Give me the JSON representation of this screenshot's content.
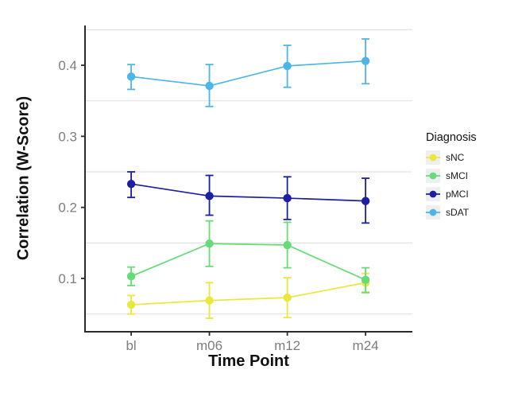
{
  "legend": {
    "title": "Diagnosis"
  },
  "style": {
    "grid_color": "#e2e2e2",
    "axis_color": "#2b2b2b",
    "tick_label_color": "#7e7e7e",
    "legend_key_bg": "#efefef"
  },
  "chart_data": {
    "type": "line",
    "title": "",
    "xlabel": "Time Point",
    "ylabel": "Correlation (W-Score)",
    "x_categories": [
      "bl",
      "m06",
      "m12",
      "m24"
    ],
    "yticks": [
      0.1,
      0.2,
      0.3,
      0.4
    ],
    "ytick_labels": [
      "0.1",
      "0.2",
      "0.3",
      "0.4"
    ],
    "gridlines": [
      0.05,
      0.15,
      0.25,
      0.35,
      0.45
    ],
    "ylim": [
      0.025,
      0.456
    ],
    "grid": "horizontal-minor-only",
    "legend_position": "right",
    "error_bars": true,
    "series": [
      {
        "name": "sNC",
        "color": "#e9e83c",
        "values": [
          0.063,
          0.069,
          0.073,
          0.094
        ],
        "err_low": [
          0.05,
          0.044,
          0.045,
          0.081
        ],
        "err_high": [
          0.076,
          0.094,
          0.101,
          0.107
        ]
      },
      {
        "name": "sMCI",
        "color": "#66dc78",
        "values": [
          0.103,
          0.149,
          0.147,
          0.098
        ],
        "err_low": [
          0.09,
          0.117,
          0.115,
          0.08
        ],
        "err_high": [
          0.116,
          0.181,
          0.179,
          0.115
        ]
      },
      {
        "name": "pMCI",
        "color": "#1b1fa0",
        "values": [
          0.233,
          0.216,
          0.213,
          0.209
        ],
        "err_low": [
          0.214,
          0.189,
          0.183,
          0.178
        ],
        "err_high": [
          0.25,
          0.245,
          0.243,
          0.241
        ]
      },
      {
        "name": "sDAT",
        "color": "#4db5e8",
        "values": [
          0.384,
          0.371,
          0.399,
          0.406
        ],
        "err_low": [
          0.366,
          0.342,
          0.369,
          0.374
        ],
        "err_high": [
          0.401,
          0.401,
          0.428,
          0.437
        ]
      }
    ]
  }
}
